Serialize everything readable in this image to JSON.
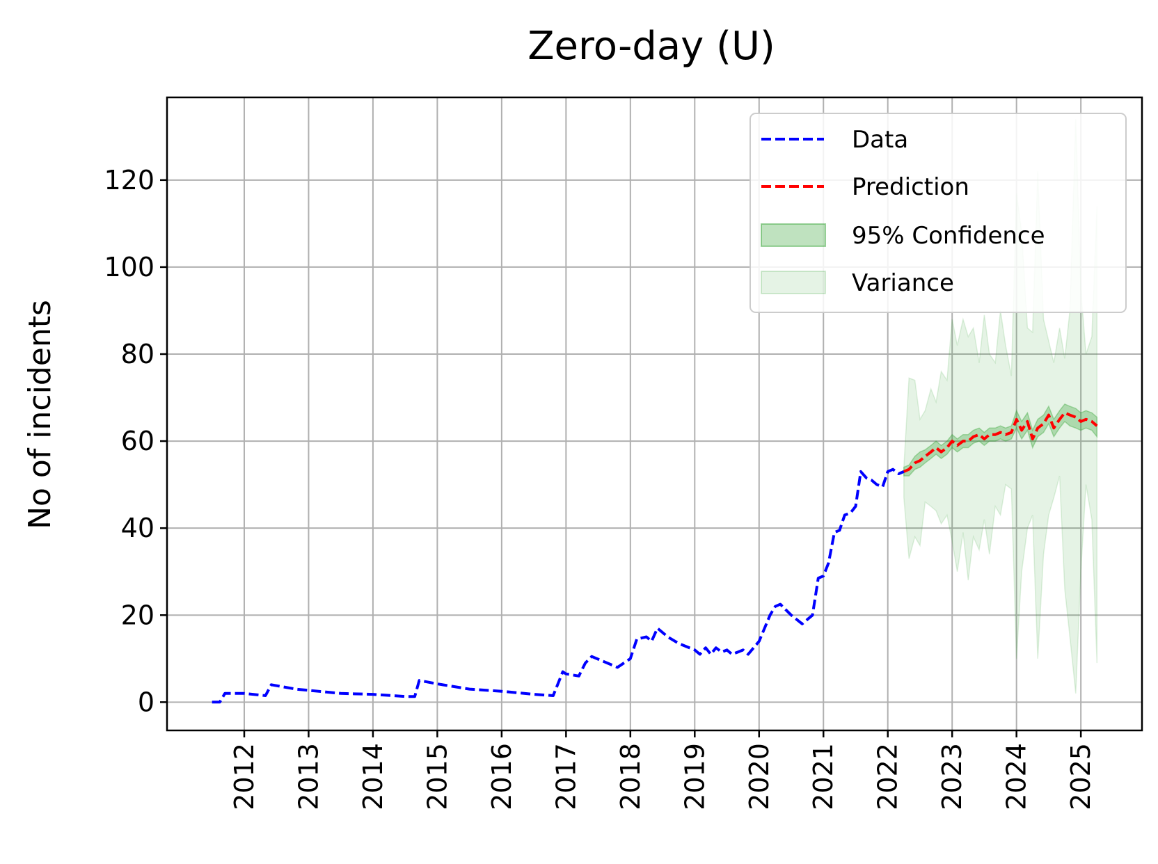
{
  "chart_data": {
    "type": "line",
    "title": "Zero-day (U)",
    "xlabel": "",
    "ylabel": "No of incidents",
    "xlim": [
      2010.8,
      2025.95
    ],
    "ylim": [
      -6.5,
      139
    ],
    "x_ticks": [
      2012,
      2013,
      2014,
      2015,
      2016,
      2017,
      2018,
      2019,
      2020,
      2021,
      2022,
      2023,
      2024,
      2025
    ],
    "y_ticks": [
      0,
      20,
      40,
      60,
      80,
      100,
      120
    ],
    "grid": true,
    "legend": {
      "placement": "top-right",
      "entries": [
        "Data",
        "Prediction",
        "95% Confidence",
        "Variance"
      ]
    },
    "colors": {
      "data": "#0000ff",
      "prediction": "#ff0000",
      "confidence": "#2ca02c",
      "variance": "#2ca02c",
      "grid": "#b0b0b0"
    },
    "series": [
      {
        "name": "Data",
        "x": [
          2011.5,
          2011.62,
          2011.7,
          2012.0,
          2012.33,
          2012.42,
          2012.8,
          2013.5,
          2014.0,
          2014.5,
          2014.65,
          2014.72,
          2015.0,
          2015.5,
          2016.0,
          2016.5,
          2016.8,
          2016.95,
          2017.0,
          2017.2,
          2017.3,
          2017.4,
          2017.8,
          2018.0,
          2018.1,
          2018.25,
          2018.33,
          2018.42,
          2018.58,
          2018.75,
          2019.0,
          2019.08,
          2019.17,
          2019.25,
          2019.33,
          2019.42,
          2019.5,
          2019.58,
          2019.67,
          2019.75,
          2019.83,
          2020.0,
          2020.17,
          2020.25,
          2020.33,
          2020.5,
          2020.67,
          2020.83,
          2020.92,
          2021.0,
          2021.08,
          2021.17,
          2021.25,
          2021.33,
          2021.42,
          2021.5,
          2021.58,
          2021.67,
          2021.75,
          2021.83,
          2021.92,
          2022.0,
          2022.08,
          2022.17,
          2022.25
        ],
        "values": [
          0,
          0,
          2,
          2,
          1.5,
          4,
          3,
          2,
          1.8,
          1.3,
          1.3,
          5,
          4.2,
          3,
          2.5,
          1.8,
          1.5,
          7,
          6.5,
          6,
          9,
          10.5,
          8,
          10,
          14.5,
          15,
          14,
          17,
          15,
          13.5,
          12,
          11,
          12.5,
          11,
          12.5,
          11.5,
          12,
          11,
          11.5,
          12,
          11,
          14,
          20,
          22,
          22.5,
          20,
          18,
          20,
          28.5,
          29,
          32,
          39,
          39.5,
          43,
          43.5,
          45,
          53,
          51.5,
          51,
          50,
          49.5,
          53,
          53.5,
          52.5,
          53
        ]
      },
      {
        "name": "Prediction",
        "x": [
          2022.25,
          2022.33,
          2022.42,
          2022.5,
          2022.58,
          2022.67,
          2022.75,
          2022.83,
          2022.92,
          2023.0,
          2023.08,
          2023.17,
          2023.25,
          2023.33,
          2023.42,
          2023.5,
          2023.58,
          2023.67,
          2023.75,
          2023.83,
          2023.92,
          2024.0,
          2024.08,
          2024.17,
          2024.25,
          2024.33,
          2024.42,
          2024.5,
          2024.58,
          2024.67,
          2024.75,
          2024.83,
          2024.92,
          2025.0,
          2025.08,
          2025.17,
          2025.25
        ],
        "values": [
          53,
          53.5,
          55,
          55.5,
          56.5,
          57.5,
          58.5,
          57.5,
          58.5,
          60,
          59,
          60,
          60,
          61,
          61.5,
          60.5,
          61.5,
          61.5,
          62,
          61.5,
          62,
          65,
          62.5,
          64.5,
          60.5,
          63,
          64,
          66,
          63,
          65,
          66.5,
          66,
          65.5,
          64.5,
          65,
          64.5,
          63.5
        ]
      }
    ],
    "bands": [
      {
        "name": "95% Confidence",
        "x": [
          2022.25,
          2022.33,
          2022.42,
          2022.5,
          2022.58,
          2022.67,
          2022.75,
          2022.83,
          2022.92,
          2023.0,
          2023.08,
          2023.17,
          2023.25,
          2023.33,
          2023.42,
          2023.5,
          2023.58,
          2023.67,
          2023.75,
          2023.83,
          2023.92,
          2024.0,
          2024.08,
          2024.17,
          2024.25,
          2024.33,
          2024.42,
          2024.5,
          2024.58,
          2024.67,
          2024.75,
          2024.83,
          2024.92,
          2025.0,
          2025.08,
          2025.17,
          2025.25
        ],
        "lower": [
          52,
          52,
          53.5,
          54,
          55,
          56,
          57,
          56,
          57,
          58.5,
          57.5,
          58.5,
          58.5,
          59.5,
          60,
          59,
          60,
          60,
          60.5,
          60,
          60.5,
          63,
          60.5,
          62.5,
          58.5,
          61,
          62,
          64,
          61,
          63,
          64.5,
          63.5,
          63,
          62.5,
          63,
          62.5,
          61
        ],
        "upper": [
          54,
          54.5,
          56.5,
          57.5,
          58,
          59,
          60,
          59,
          60,
          61.5,
          60.5,
          61.5,
          61.5,
          62.5,
          63,
          62,
          63,
          63,
          63.5,
          63,
          63.5,
          67,
          64.5,
          66.5,
          62.5,
          65,
          66,
          68,
          65,
          67,
          68.5,
          68,
          67.5,
          66.5,
          67,
          66.5,
          65.5
        ]
      },
      {
        "name": "Variance",
        "x": [
          2022.25,
          2022.33,
          2022.42,
          2022.5,
          2022.58,
          2022.67,
          2022.75,
          2022.83,
          2022.92,
          2023.0,
          2023.08,
          2023.17,
          2023.25,
          2023.33,
          2023.42,
          2023.5,
          2023.58,
          2023.67,
          2023.75,
          2023.83,
          2023.92,
          2024.0,
          2024.08,
          2024.17,
          2024.25,
          2024.33,
          2024.42,
          2024.5,
          2024.58,
          2024.67,
          2024.75,
          2024.83,
          2024.92,
          2025.0,
          2025.08,
          2025.17,
          2025.25
        ],
        "lower": [
          47,
          33,
          38,
          36,
          46,
          45,
          44,
          41,
          43,
          37,
          30,
          39,
          28,
          38,
          35,
          42,
          34,
          45,
          43,
          50,
          49,
          10,
          30,
          40,
          43,
          10,
          34,
          43,
          47,
          52,
          26,
          15,
          2,
          30,
          50,
          42,
          9
        ],
        "upper": [
          54,
          74.5,
          74,
          65,
          67,
          72,
          69,
          76,
          74,
          88,
          82,
          88,
          84,
          86,
          78,
          89,
          80,
          78,
          90,
          82,
          75,
          117,
          108,
          86,
          85,
          122,
          88,
          83,
          78,
          86,
          79,
          90,
          134,
          95,
          80,
          84,
          114
        ]
      }
    ]
  }
}
